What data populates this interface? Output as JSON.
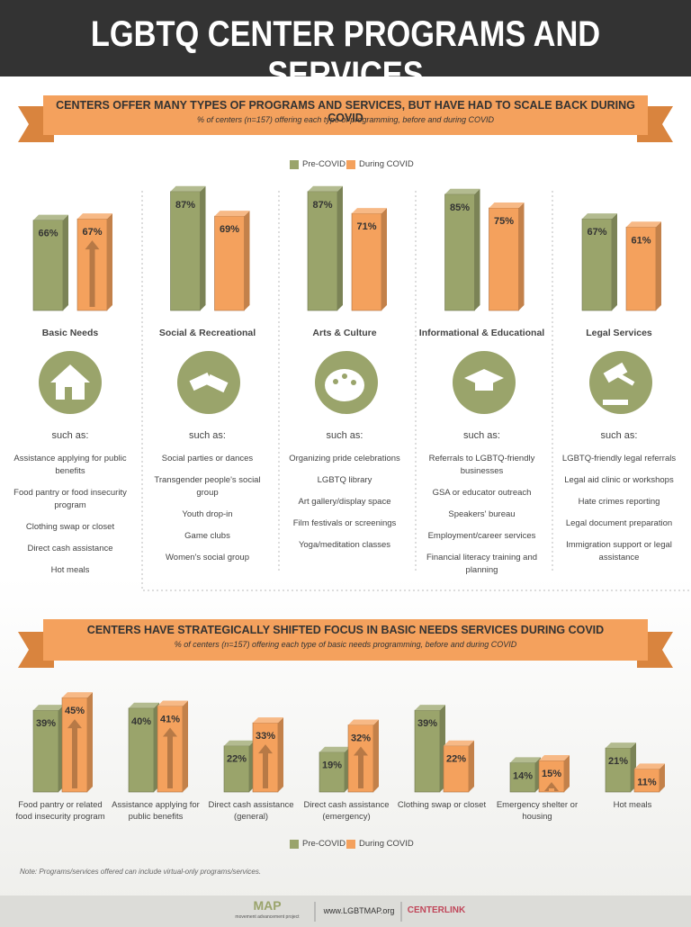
{
  "header": {
    "title": "LGBTQ CENTER PROGRAMS AND SERVICES"
  },
  "chart_data": [
    {
      "type": "bar",
      "title": "CENTERS OFFER MANY TYPES OF PROGRAMS AND SERVICES, BUT HAVE HAD TO SCALE BACK DURING COVID",
      "subtitle": "% of centers (n=157) offering each type of programming, before and during COVID",
      "categories": [
        "Basic Needs",
        "Social & Recreational",
        "Arts & Culture",
        "Informational & Educational",
        "Legal Services"
      ],
      "series": [
        {
          "name": "Pre-COVID",
          "color": "#9aa46b",
          "values": [
            66,
            87,
            87,
            85,
            67
          ],
          "value_labels": [
            "66%",
            "87%",
            "87%",
            "85%",
            "67%"
          ]
        },
        {
          "name": "During COVID",
          "color": "#f4a15d",
          "values": [
            67,
            69,
            71,
            75,
            61
          ],
          "value_labels": [
            "67%",
            "69%",
            "71%",
            "75%",
            "61%"
          ]
        }
      ],
      "legend": "top"
    },
    {
      "type": "bar",
      "title": "CENTERS HAVE STRATEGICALLY SHIFTED FOCUS IN BASIC NEEDS SERVICES DURING COVID",
      "subtitle": "% of centers (n=157) offering each type of basic needs programming, before and during COVID",
      "categories": [
        "Food pantry or related food insecurity program",
        "Assistance applying for public benefits",
        "Direct cash assistance (general)",
        "Direct cash assistance (emergency)",
        "Clothing swap or closet",
        "Emergency shelter or housing",
        "Hot meals"
      ],
      "series": [
        {
          "name": "Pre-COVID",
          "color": "#9aa46b",
          "values": [
            39,
            40,
            22,
            19,
            39,
            14,
            21
          ],
          "value_labels": [
            "39%",
            "40%",
            "22%",
            "19%",
            "39%",
            "14%",
            "21%"
          ]
        },
        {
          "name": "During COVID",
          "color": "#f4a15d",
          "values": [
            45,
            41,
            33,
            32,
            22,
            15,
            11
          ],
          "value_labels": [
            "45%",
            "41%",
            "33%",
            "32%",
            "22%",
            "15%",
            "11%"
          ]
        }
      ],
      "legend": "bottom"
    }
  ],
  "examples": {
    "label": "such as:",
    "lists": [
      [
        "Assistance applying for public benefits",
        "Food pantry or food insecurity program",
        "Clothing swap or closet",
        "Direct cash assistance",
        "Hot meals"
      ],
      [
        "Social parties or dances",
        "Transgender people's social group",
        "Youth drop-in",
        "Game clubs",
        "Women's social group"
      ],
      [
        "Organizing pride celebrations",
        "LGBTQ library",
        "Art gallery/display space",
        "Film festivals or screenings",
        "Yoga/meditation classes"
      ],
      [
        "Referrals to LGBTQ-friendly businesses",
        "GSA or educator outreach",
        "Speakers' bureau",
        "Employment/career services",
        "Financial literacy training and planning"
      ],
      [
        "LGBTQ-friendly legal referrals",
        "Legal aid clinic or workshops",
        "Hate crimes reporting",
        "Legal document preparation",
        "Immigration support or legal assistance"
      ]
    ]
  },
  "note": "Note: Programs/services offered can include virtual-only programs/services.",
  "footer": {
    "map_logo": "MAP",
    "map_tagline": "movement advancement project",
    "url": "www.LGBTMAP.org",
    "centerlink": "CENTERLINK"
  }
}
